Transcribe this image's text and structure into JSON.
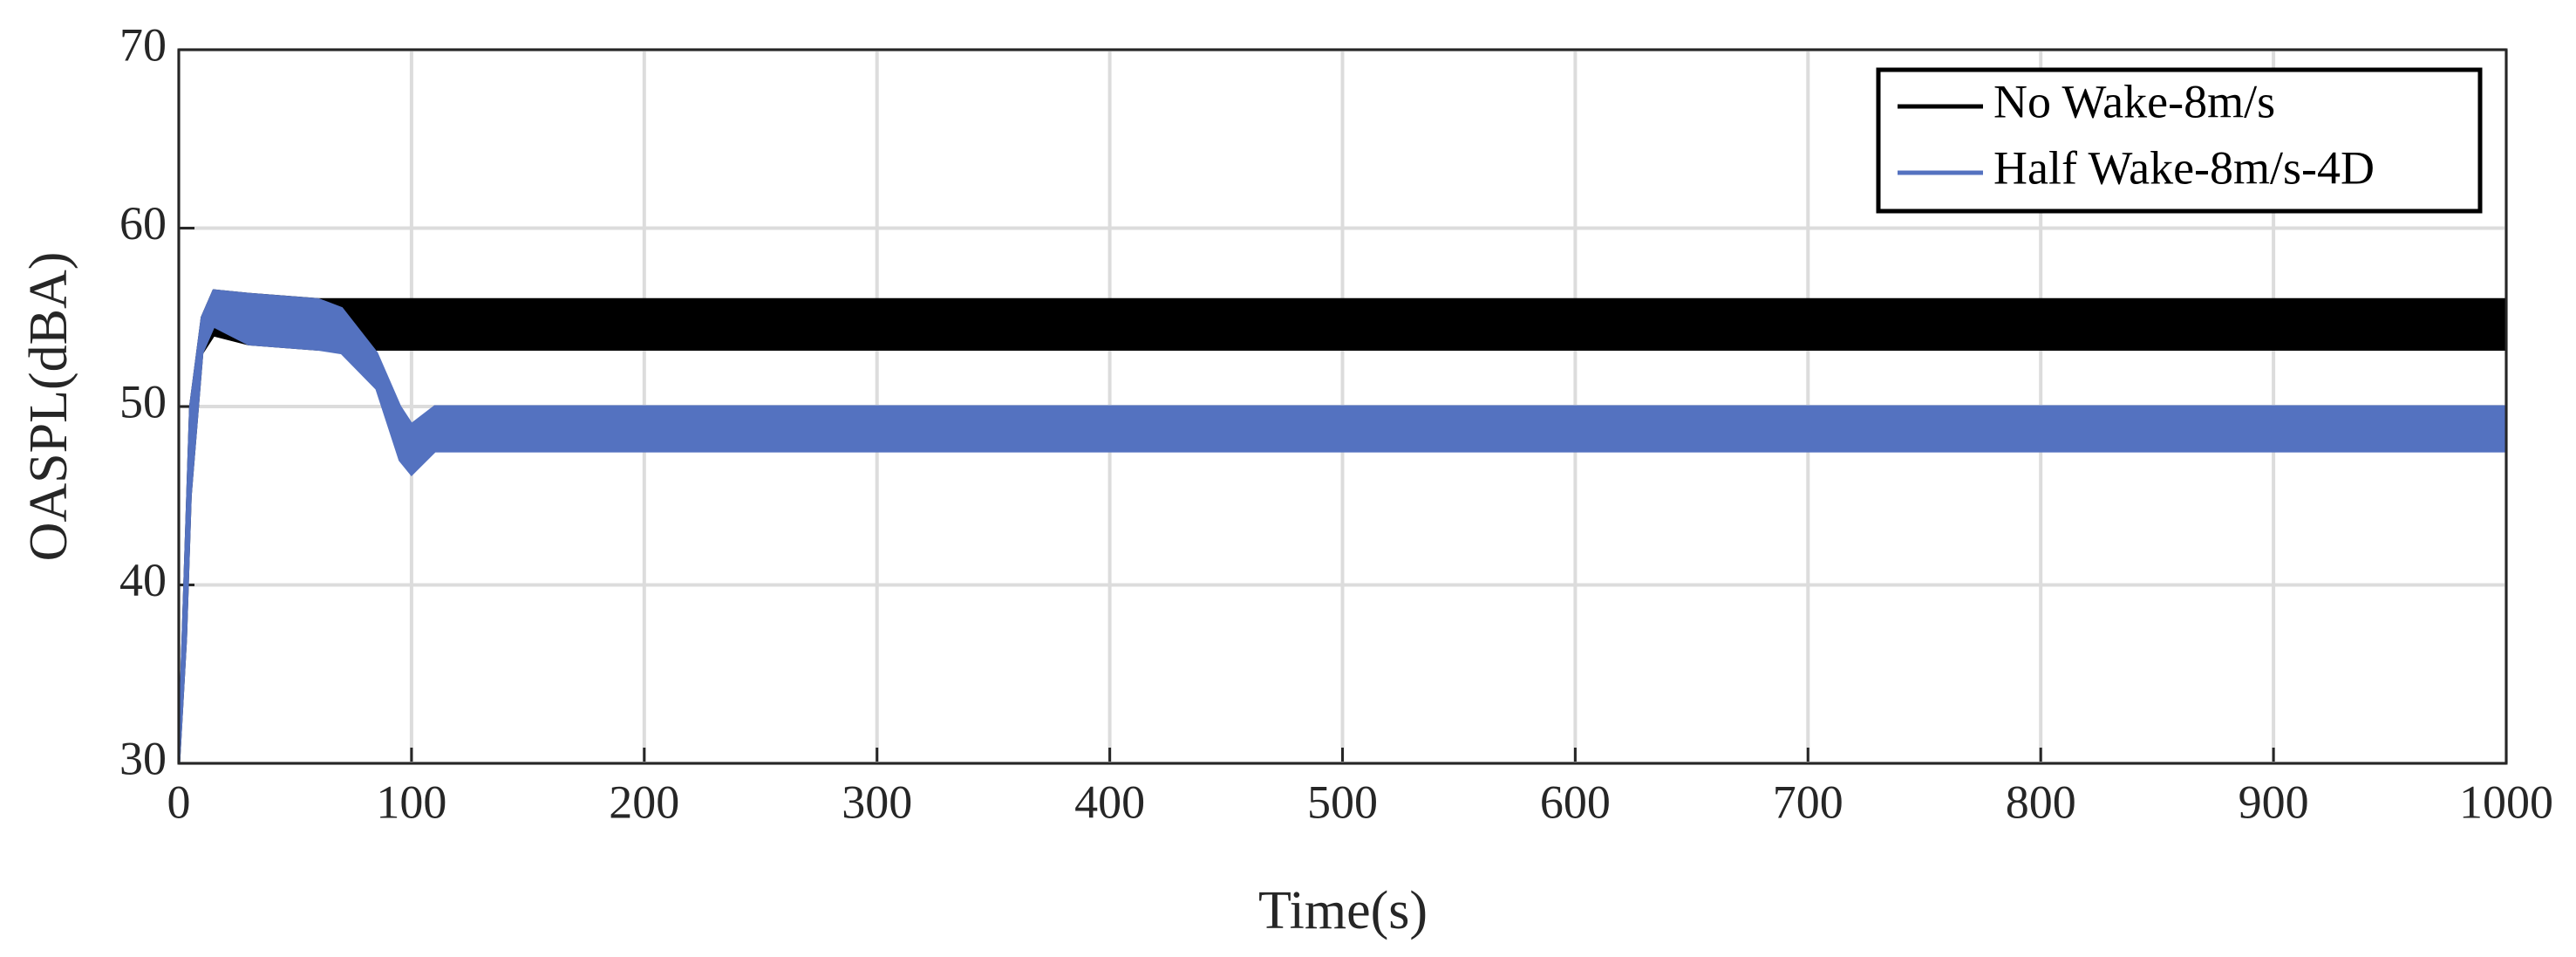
{
  "chart_data": {
    "type": "band",
    "xlabel": "Time(s)",
    "ylabel": "OASPL(dBA)",
    "xlim": [
      0,
      1000
    ],
    "xticks": [
      0,
      100,
      200,
      300,
      400,
      500,
      600,
      700,
      800,
      900,
      1000
    ],
    "ylim": [
      30,
      70
    ],
    "yticks": [
      30,
      40,
      50,
      60,
      70
    ],
    "grid": true,
    "legend": "upper right",
    "series": [
      {
        "name": "No Wake-8m/s",
        "color": "#000000",
        "x": [
          0,
          3,
          5,
          10,
          15,
          30,
          60,
          80,
          1000
        ],
        "high": [
          30,
          42,
          50,
          55,
          56.5,
          56.3,
          56,
          56,
          56
        ],
        "low": [
          30,
          37,
          45,
          53,
          54,
          53.5,
          53.2,
          53.2,
          53.2
        ]
      },
      {
        "name": "Half Wake-8m/s-4D",
        "color": "#5472c0",
        "x": [
          0,
          3,
          5,
          10,
          15,
          30,
          60,
          70,
          85,
          95,
          100,
          110,
          150,
          1000
        ],
        "high": [
          30,
          42,
          50,
          55,
          56.5,
          56.3,
          56,
          55.5,
          53,
          50,
          49,
          50,
          50,
          50
        ],
        "low": [
          30,
          37,
          45,
          53,
          54.5,
          53.5,
          53.2,
          53,
          51,
          47,
          46.2,
          47.5,
          47.5,
          47.5
        ]
      }
    ]
  }
}
